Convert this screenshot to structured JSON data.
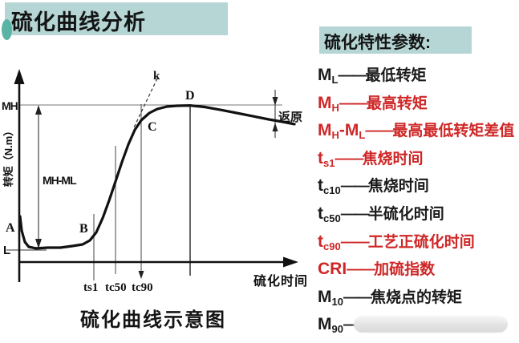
{
  "title": "硫化曲线分析",
  "panel": {
    "title": "硫化特性参数:",
    "items": [
      {
        "base1": "M",
        "sub1": "L",
        "base2": "",
        "sub2": "",
        "dash": "——",
        "desc": "最低转矩",
        "color": "black"
      },
      {
        "base1": "M",
        "sub1": "H",
        "base2": "",
        "sub2": "",
        "dash": "——",
        "desc": "最高转矩",
        "color": "red"
      },
      {
        "base1": "M",
        "sub1": "H",
        "base2": "-M",
        "sub2": "L",
        "dash": "——",
        "desc": "最高最低转矩差值",
        "color": "red"
      },
      {
        "base1": "t",
        "sub1": "s1",
        "base2": "",
        "sub2": "",
        "dash": "——",
        "desc": "焦烧时间",
        "color": "red"
      },
      {
        "base1": "t",
        "sub1": "c10",
        "base2": "",
        "sub2": "",
        "dash": "——",
        "desc": "焦烧时间",
        "color": "black"
      },
      {
        "base1": "t",
        "sub1": "c50",
        "base2": "",
        "sub2": "",
        "dash": "——",
        "desc": "半硫化时间",
        "color": "black"
      },
      {
        "base1": "t",
        "sub1": "c90",
        "base2": "",
        "sub2": "",
        "dash": "——",
        "desc": "工艺正硫化时间",
        "color": "red"
      },
      {
        "base1": "CRI",
        "sub1": "",
        "base2": "",
        "sub2": "",
        "dash": "——",
        "desc": "加硫指数",
        "color": "red"
      },
      {
        "base1": "M",
        "sub1": "10",
        "base2": "",
        "sub2": "",
        "dash": "——",
        "desc": "焦烧点的转矩",
        "color": "black"
      },
      {
        "base1": "M",
        "sub1": "90",
        "base2": "",
        "sub2": "",
        "dash": "—",
        "desc": "",
        "color": "black",
        "obscured": true
      }
    ]
  },
  "chart_data": {
    "type": "line",
    "title": "硫化曲线示意图",
    "xlabel": "硫化时间",
    "ylabel": "转矩（N.m）",
    "x_ticks": [
      "ts1",
      "tc50",
      "tc90"
    ],
    "point_labels": [
      "A",
      "B",
      "C",
      "D"
    ],
    "tangent_label": "k",
    "reversion_label": "返原",
    "y_top_label": "MH",
    "y_bottom_label": "L",
    "span_label": "MH-ML",
    "legend_position": "none",
    "grid": false,
    "y_scale_note": "schematic curve, y normalized: MH level = 100, ML minimum ≈ 9",
    "xlim": [
      0,
      100
    ],
    "ylim": [
      0,
      110
    ],
    "series": [
      {
        "name": "硫化曲线",
        "x": [
          0.3,
          0.9,
          2.0,
          3.4,
          6.0,
          10.3,
          14.7,
          19.0,
          22.7,
          25.3,
          27.6,
          29.9,
          32.2,
          34.5,
          36.8,
          39.1,
          41.4,
          43.7,
          46.6,
          49.4,
          52.9,
          56.3,
          61.2,
          66.4,
          72.1,
          77.9,
          83.6,
          89.4,
          94.3,
          98.6
        ],
        "y": [
          29.1,
          19.9,
          12.8,
          9.7,
          8.7,
          9.2,
          9.2,
          10.2,
          11.2,
          13.8,
          18.9,
          28.1,
          39.3,
          51.5,
          63.8,
          75.0,
          84.2,
          90.3,
          94.9,
          97.4,
          99.0,
          99.5,
          99.7,
          98.7,
          96.9,
          94.9,
          92.9,
          90.8,
          89.3,
          87.8
        ]
      }
    ]
  },
  "colors": {
    "banner_teal": "#b5d6d4",
    "accent_teal": "#5ab4a5",
    "highlight_red": "#cf2626",
    "ink": "#1a1a1a"
  }
}
